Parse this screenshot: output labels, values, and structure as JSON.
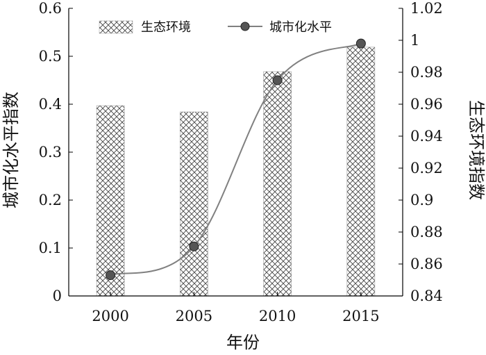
{
  "chart_data": {
    "type": "bar",
    "categories": [
      "2000",
      "2005",
      "2010",
      "2015"
    ],
    "xlabel": "年份",
    "y_left_label": "城市化水平指数",
    "y_right_label": "生态环境指数",
    "y_left_range": [
      0,
      0.6
    ],
    "y_left_ticks": [
      "0",
      "0.1",
      "0.2",
      "0.3",
      "0.4",
      "0.5",
      "0.6"
    ],
    "y_right_range": [
      0.84,
      1.02
    ],
    "y_right_ticks": [
      "0.84",
      "0.86",
      "0.88",
      "0.9",
      "0.92",
      "0.94",
      "0.96",
      "0.98",
      "1",
      "1.02"
    ],
    "series": [
      {
        "name": "生态环境",
        "kind": "bar",
        "axis": "left",
        "pattern": "crosshatch",
        "values": [
          0.397,
          0.384,
          0.468,
          0.519
        ]
      },
      {
        "name": "城市化水平",
        "kind": "line",
        "axis": "right",
        "color": "#808080",
        "marker_color": "#555555",
        "values": [
          0.853,
          0.871,
          0.975,
          0.998
        ]
      }
    ],
    "legend": "top",
    "grid": false
  }
}
